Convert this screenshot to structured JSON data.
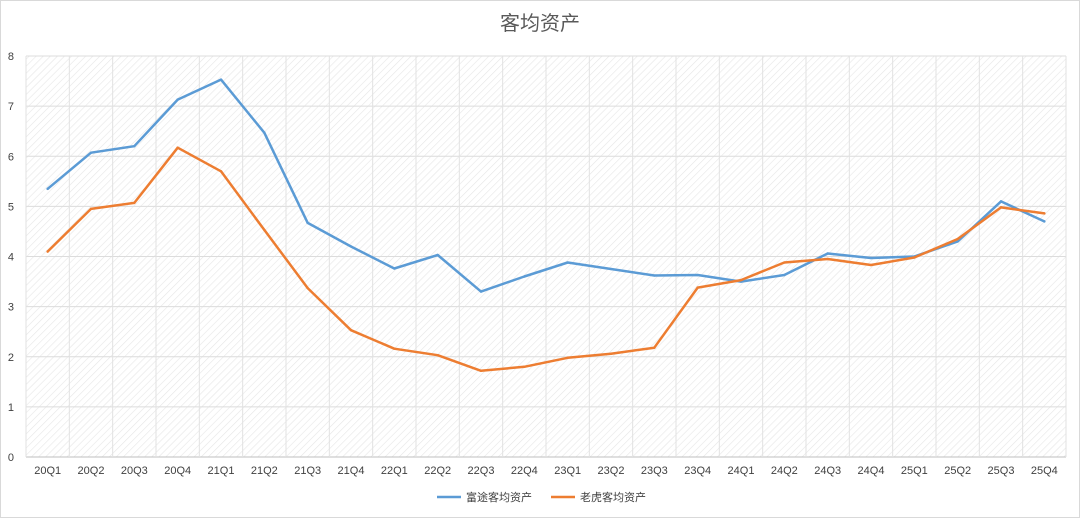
{
  "chart_data": {
    "type": "line",
    "title": "客均资产",
    "xlabel": "",
    "ylabel": "",
    "ylim": [
      0,
      8
    ],
    "yticks": [
      "0",
      "1",
      "2",
      "3",
      "4",
      "5",
      "6",
      "7",
      "8"
    ],
    "grid": true,
    "legend_position": "bottom",
    "categories": [
      "20Q1",
      "20Q2",
      "20Q3",
      "20Q4",
      "21Q1",
      "21Q2",
      "21Q3",
      "21Q4",
      "22Q1",
      "22Q2",
      "22Q3",
      "22Q4",
      "23Q1",
      "23Q2",
      "23Q3",
      "23Q4",
      "24Q1",
      "24Q2",
      "24Q3",
      "24Q4",
      "25Q1",
      "25Q2",
      "25Q3",
      "25Q4"
    ],
    "series": [
      {
        "name": "富途客均资产",
        "color": "#5B9BD5",
        "values": [
          5.35,
          6.07,
          6.2,
          7.13,
          7.53,
          6.47,
          4.67,
          4.2,
          3.76,
          4.03,
          3.3,
          3.6,
          3.88,
          3.75,
          3.62,
          3.63,
          3.5,
          3.63,
          4.06,
          3.97,
          4.0,
          4.3,
          5.1,
          4.7
        ]
      },
      {
        "name": "老虎客均资产",
        "color": "#ED7D31",
        "values": [
          4.1,
          4.95,
          5.07,
          6.17,
          5.7,
          4.53,
          3.37,
          2.53,
          2.16,
          2.03,
          1.72,
          1.8,
          1.98,
          2.06,
          2.18,
          3.38,
          3.53,
          3.88,
          3.95,
          3.83,
          3.98,
          4.35,
          4.98,
          4.86
        ]
      }
    ]
  }
}
